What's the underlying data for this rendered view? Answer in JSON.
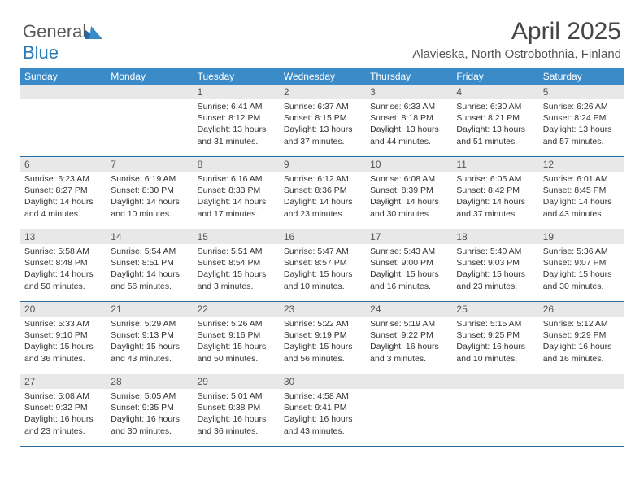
{
  "logo": {
    "part1": "General",
    "part2": "Blue"
  },
  "header": {
    "month": "April 2025",
    "location": "Alavieska, North Ostrobothnia, Finland"
  },
  "colors": {
    "header_bg": "#3b8bc9",
    "header_border": "#2a6da3",
    "daynum_bg": "#e8e8e8"
  },
  "daynames": [
    "Sunday",
    "Monday",
    "Tuesday",
    "Wednesday",
    "Thursday",
    "Friday",
    "Saturday"
  ],
  "weeks": [
    [
      null,
      null,
      {
        "n": "1",
        "sr": "6:41 AM",
        "ss": "8:12 PM",
        "dl": "13 hours and 31 minutes."
      },
      {
        "n": "2",
        "sr": "6:37 AM",
        "ss": "8:15 PM",
        "dl": "13 hours and 37 minutes."
      },
      {
        "n": "3",
        "sr": "6:33 AM",
        "ss": "8:18 PM",
        "dl": "13 hours and 44 minutes."
      },
      {
        "n": "4",
        "sr": "6:30 AM",
        "ss": "8:21 PM",
        "dl": "13 hours and 51 minutes."
      },
      {
        "n": "5",
        "sr": "6:26 AM",
        "ss": "8:24 PM",
        "dl": "13 hours and 57 minutes."
      }
    ],
    [
      {
        "n": "6",
        "sr": "6:23 AM",
        "ss": "8:27 PM",
        "dl": "14 hours and 4 minutes."
      },
      {
        "n": "7",
        "sr": "6:19 AM",
        "ss": "8:30 PM",
        "dl": "14 hours and 10 minutes."
      },
      {
        "n": "8",
        "sr": "6:16 AM",
        "ss": "8:33 PM",
        "dl": "14 hours and 17 minutes."
      },
      {
        "n": "9",
        "sr": "6:12 AM",
        "ss": "8:36 PM",
        "dl": "14 hours and 23 minutes."
      },
      {
        "n": "10",
        "sr": "6:08 AM",
        "ss": "8:39 PM",
        "dl": "14 hours and 30 minutes."
      },
      {
        "n": "11",
        "sr": "6:05 AM",
        "ss": "8:42 PM",
        "dl": "14 hours and 37 minutes."
      },
      {
        "n": "12",
        "sr": "6:01 AM",
        "ss": "8:45 PM",
        "dl": "14 hours and 43 minutes."
      }
    ],
    [
      {
        "n": "13",
        "sr": "5:58 AM",
        "ss": "8:48 PM",
        "dl": "14 hours and 50 minutes."
      },
      {
        "n": "14",
        "sr": "5:54 AM",
        "ss": "8:51 PM",
        "dl": "14 hours and 56 minutes."
      },
      {
        "n": "15",
        "sr": "5:51 AM",
        "ss": "8:54 PM",
        "dl": "15 hours and 3 minutes."
      },
      {
        "n": "16",
        "sr": "5:47 AM",
        "ss": "8:57 PM",
        "dl": "15 hours and 10 minutes."
      },
      {
        "n": "17",
        "sr": "5:43 AM",
        "ss": "9:00 PM",
        "dl": "15 hours and 16 minutes."
      },
      {
        "n": "18",
        "sr": "5:40 AM",
        "ss": "9:03 PM",
        "dl": "15 hours and 23 minutes."
      },
      {
        "n": "19",
        "sr": "5:36 AM",
        "ss": "9:07 PM",
        "dl": "15 hours and 30 minutes."
      }
    ],
    [
      {
        "n": "20",
        "sr": "5:33 AM",
        "ss": "9:10 PM",
        "dl": "15 hours and 36 minutes."
      },
      {
        "n": "21",
        "sr": "5:29 AM",
        "ss": "9:13 PM",
        "dl": "15 hours and 43 minutes."
      },
      {
        "n": "22",
        "sr": "5:26 AM",
        "ss": "9:16 PM",
        "dl": "15 hours and 50 minutes."
      },
      {
        "n": "23",
        "sr": "5:22 AM",
        "ss": "9:19 PM",
        "dl": "15 hours and 56 minutes."
      },
      {
        "n": "24",
        "sr": "5:19 AM",
        "ss": "9:22 PM",
        "dl": "16 hours and 3 minutes."
      },
      {
        "n": "25",
        "sr": "5:15 AM",
        "ss": "9:25 PM",
        "dl": "16 hours and 10 minutes."
      },
      {
        "n": "26",
        "sr": "5:12 AM",
        "ss": "9:29 PM",
        "dl": "16 hours and 16 minutes."
      }
    ],
    [
      {
        "n": "27",
        "sr": "5:08 AM",
        "ss": "9:32 PM",
        "dl": "16 hours and 23 minutes."
      },
      {
        "n": "28",
        "sr": "5:05 AM",
        "ss": "9:35 PM",
        "dl": "16 hours and 30 minutes."
      },
      {
        "n": "29",
        "sr": "5:01 AM",
        "ss": "9:38 PM",
        "dl": "16 hours and 36 minutes."
      },
      {
        "n": "30",
        "sr": "4:58 AM",
        "ss": "9:41 PM",
        "dl": "16 hours and 43 minutes."
      },
      null,
      null,
      null
    ]
  ],
  "labels": {
    "sunrise": "Sunrise: ",
    "sunset": "Sunset: ",
    "daylight": "Daylight: "
  }
}
